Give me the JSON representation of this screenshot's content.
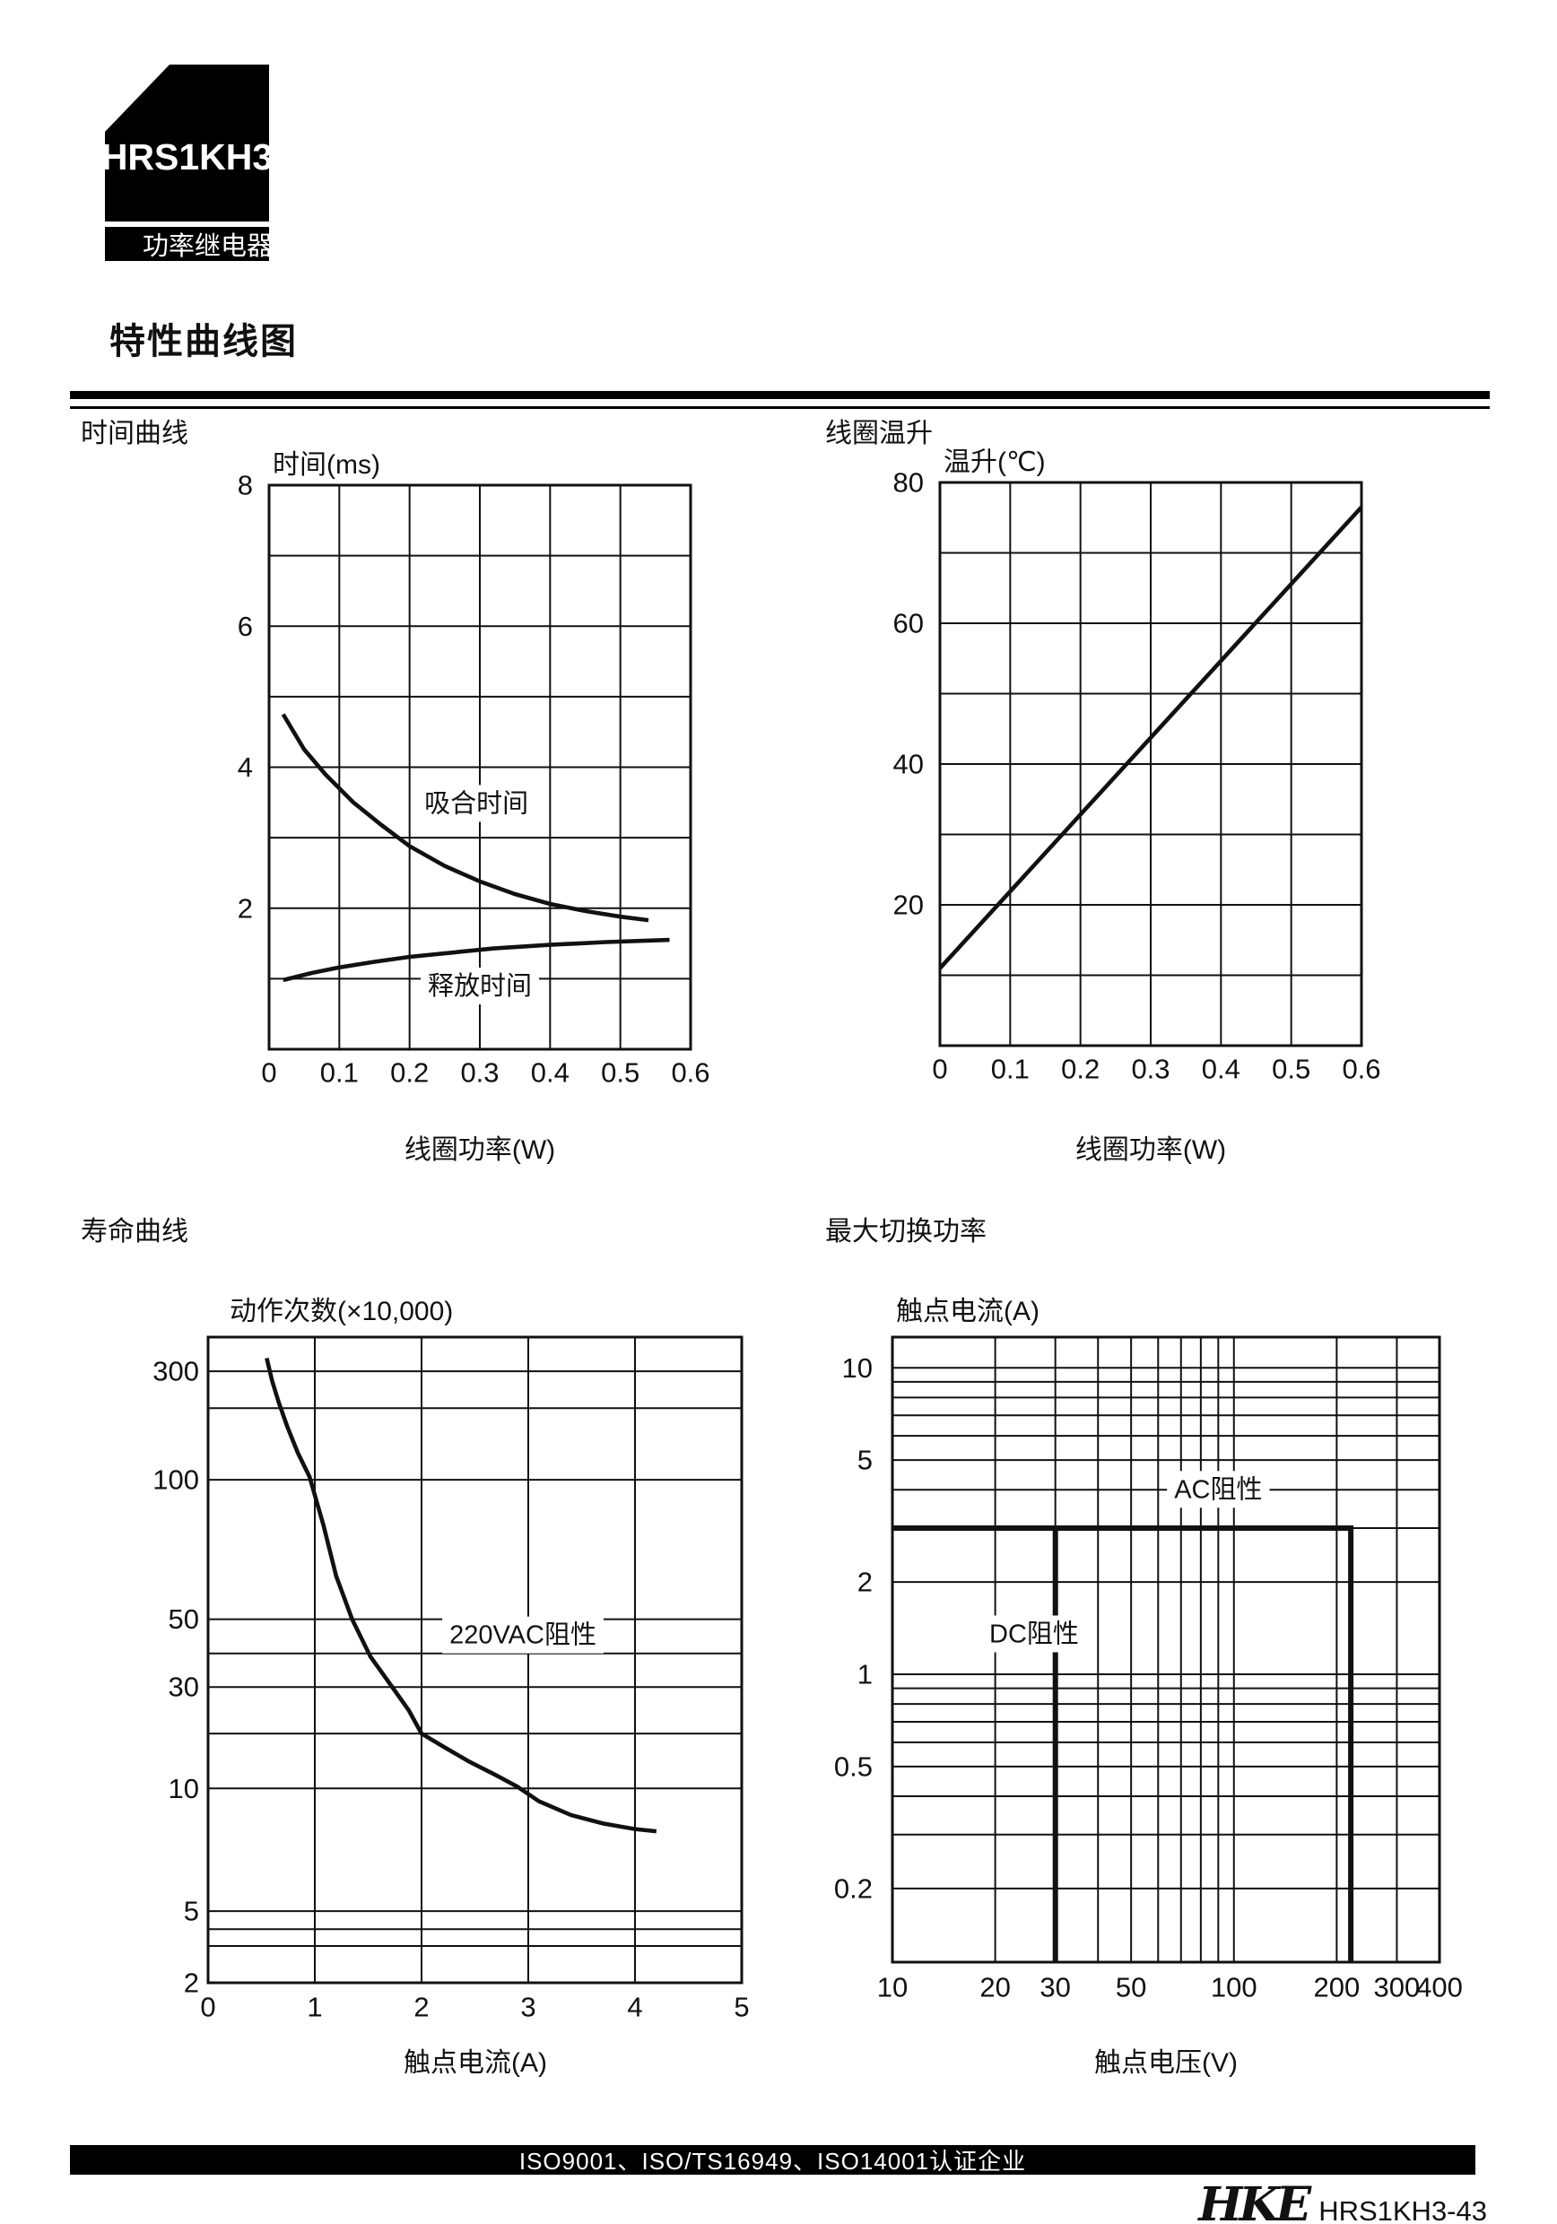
{
  "header": {
    "model": "HRS1KH3",
    "category_label": "功率继电器"
  },
  "page_title": "特性曲线图",
  "footer": {
    "certification": "ISO9001、ISO/TS16949、ISO14001认证企业",
    "brand": "HKE",
    "doc_ref": "HRS1KH3-43"
  },
  "chart_data": [
    {
      "id": "time-curve",
      "title": "时间曲线",
      "type": "line",
      "ylabel": "时间(ms)",
      "xlabel": "线圈功率(W)",
      "x_axis": {
        "scale": "linear",
        "min": 0,
        "max": 0.6,
        "gridlines": [
          0.1,
          0.2,
          0.3,
          0.4,
          0.5
        ],
        "tick_values": [
          0,
          0.1,
          0.2,
          0.3,
          0.4,
          0.5,
          0.6
        ],
        "tick_labels": [
          "0",
          "0.1",
          "0.2",
          "0.3",
          "0.4",
          "0.5",
          "0.6"
        ]
      },
      "y_axis": {
        "scale": "linear",
        "min": 0,
        "max": 8,
        "gridlines": [
          1,
          2,
          3,
          4,
          5,
          6,
          7
        ],
        "tick_values": [
          2,
          4,
          6,
          8
        ],
        "tick_labels": [
          "2",
          "4",
          "6",
          "8"
        ]
      },
      "series": [
        {
          "name": "吸合时间",
          "points": [
            [
              0.02,
              4.75
            ],
            [
              0.05,
              4.25
            ],
            [
              0.08,
              3.9
            ],
            [
              0.12,
              3.5
            ],
            [
              0.16,
              3.18
            ],
            [
              0.2,
              2.88
            ],
            [
              0.25,
              2.6
            ],
            [
              0.3,
              2.38
            ],
            [
              0.35,
              2.2
            ],
            [
              0.4,
              2.06
            ],
            [
              0.45,
              1.96
            ],
            [
              0.5,
              1.88
            ],
            [
              0.54,
              1.83
            ]
          ],
          "label_pos": [
            0.295,
            3.48
          ]
        },
        {
          "name": "释放时间",
          "points": [
            [
              0.02,
              0.98
            ],
            [
              0.06,
              1.08
            ],
            [
              0.1,
              1.16
            ],
            [
              0.15,
              1.24
            ],
            [
              0.2,
              1.31
            ],
            [
              0.26,
              1.37
            ],
            [
              0.32,
              1.43
            ],
            [
              0.4,
              1.48
            ],
            [
              0.48,
              1.52
            ],
            [
              0.57,
              1.55
            ]
          ],
          "label_pos": [
            0.3,
            0.89
          ]
        }
      ]
    },
    {
      "id": "coil-temperature-rise",
      "title": "线圈温升",
      "type": "line",
      "ylabel": "温升(℃)",
      "xlabel": "线圈功率(W)",
      "x_axis": {
        "scale": "linear",
        "min": 0,
        "max": 0.6,
        "gridlines": [
          0.1,
          0.2,
          0.3,
          0.4,
          0.5
        ],
        "tick_values": [
          0,
          0.1,
          0.2,
          0.3,
          0.4,
          0.5,
          0.6
        ],
        "tick_labels": [
          "0",
          "0.1",
          "0.2",
          "0.3",
          "0.4",
          "0.5",
          "0.6"
        ]
      },
      "y_axis": {
        "scale": "linear",
        "min": 0,
        "max": 80,
        "gridlines": [
          10,
          20,
          30,
          40,
          50,
          60,
          70
        ],
        "tick_values": [
          20,
          40,
          60,
          80
        ],
        "tick_labels": [
          "20",
          "40",
          "60",
          "80"
        ]
      },
      "series": [
        {
          "name": "温升",
          "points": [
            [
              0,
              11
            ],
            [
              0.6,
              76.5
            ]
          ]
        }
      ]
    },
    {
      "id": "life-curve",
      "title": "寿命曲线",
      "type": "line",
      "ylabel": "动作次数(×10,000)",
      "xlabel": "触点电流(A)",
      "x_axis": {
        "scale": "linear",
        "min": 0,
        "max": 5,
        "gridlines": [
          1,
          2,
          3,
          4
        ],
        "tick_values": [
          0,
          1,
          2,
          3,
          4,
          5
        ],
        "tick_labels": [
          "0",
          "1",
          "2",
          "3",
          "4",
          "5"
        ]
      },
      "y_axis": {
        "scale": "anchored",
        "min": 2,
        "max": 400,
        "anchors": [
          [
            2,
            0
          ],
          [
            3,
            0.057
          ],
          [
            4,
            0.083
          ],
          [
            5,
            0.111
          ],
          [
            10,
            0.301
          ],
          [
            20,
            0.386
          ],
          [
            30,
            0.458
          ],
          [
            40,
            0.51
          ],
          [
            50,
            0.563
          ],
          [
            100,
            0.779
          ],
          [
            200,
            0.89
          ],
          [
            300,
            0.947
          ],
          [
            400,
            1
          ]
        ],
        "gridlines": [
          3,
          4,
          5,
          10,
          20,
          30,
          40,
          50,
          100,
          200,
          300
        ],
        "tick_values": [
          300,
          100,
          50,
          30,
          10,
          5,
          2
        ],
        "tick_labels": [
          "300",
          "100",
          "50",
          "30",
          "10",
          "5",
          "2"
        ]
      },
      "series": [
        {
          "name": "220VAC阻性",
          "points": [
            [
              0.55,
              335
            ],
            [
              0.6,
              270
            ],
            [
              0.66,
              215
            ],
            [
              0.74,
              168
            ],
            [
              0.84,
              130
            ],
            [
              0.95,
              103
            ],
            [
              1.08,
              80
            ],
            [
              1.2,
              62
            ],
            [
              1.35,
              50
            ],
            [
              1.52,
              39
            ],
            [
              1.7,
              31
            ],
            [
              1.88,
              24.5
            ],
            [
              2.0,
              20
            ],
            [
              2.2,
              17
            ],
            [
              2.45,
              14
            ],
            [
              2.7,
              11.8
            ],
            [
              2.9,
              10.2
            ],
            [
              3.1,
              9.3
            ],
            [
              3.4,
              8.6
            ],
            [
              3.7,
              8.2
            ],
            [
              4.0,
              7.95
            ],
            [
              4.2,
              7.85
            ]
          ],
          "label_pos": [
            2.95,
            45
          ]
        }
      ]
    },
    {
      "id": "max-switching-power",
      "title": "最大切换功率",
      "type": "line",
      "ylabel": "触点电流(A)",
      "xlabel": "触点电压(V)",
      "x_axis": {
        "scale": "log",
        "min": 10,
        "max": 400,
        "gridlines": [
          20,
          30,
          40,
          50,
          60,
          70,
          80,
          90,
          100,
          200,
          300
        ],
        "tick_values": [
          10,
          20,
          30,
          50,
          100,
          200,
          300,
          400
        ],
        "tick_labels": [
          "10",
          "20",
          "30",
          "50",
          "100",
          "200",
          "300",
          "400"
        ]
      },
      "y_axis": {
        "scale": "log",
        "min": 0.115,
        "max": 12.6,
        "gridlines": [
          0.2,
          0.3,
          0.4,
          0.5,
          0.6,
          0.7,
          0.8,
          0.9,
          1,
          2,
          3,
          4,
          5,
          6,
          7,
          8,
          9,
          10
        ],
        "tick_values": [
          10,
          5,
          2,
          1,
          0.5,
          0.2
        ],
        "tick_labels": [
          "10",
          "5",
          "2",
          "1",
          "0.5",
          "0.2"
        ]
      },
      "series": [
        {
          "name": "AC阻性",
          "thick": true,
          "points": [
            [
              10,
              3
            ],
            [
              220,
              3
            ],
            [
              220,
              0.115
            ]
          ],
          "label_pos": [
            90,
            4
          ]
        },
        {
          "name": "DC阻性",
          "thick": true,
          "points": [
            [
              30,
              3
            ],
            [
              30,
              0.115
            ]
          ],
          "label_pos": [
            26,
            1.35
          ]
        }
      ]
    }
  ]
}
